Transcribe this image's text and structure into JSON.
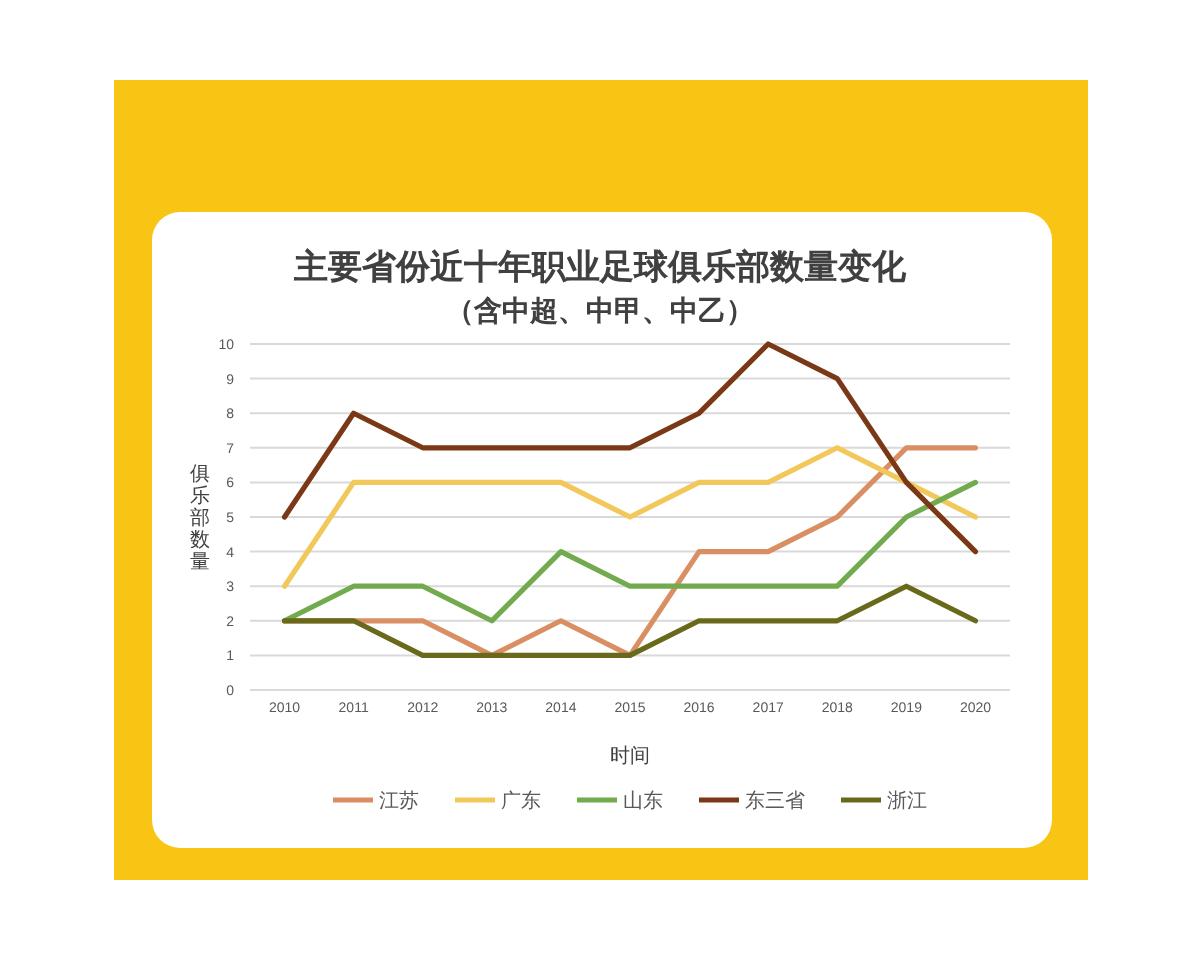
{
  "chart_data": {
    "type": "line",
    "title": "主要省份近十年职业足球俱乐部数量变化",
    "subtitle": "（含中超、中甲、中乙）",
    "xlabel": "时间",
    "ylabel": "俱乐部数量",
    "categories": [
      "2010",
      "2011",
      "2012",
      "2013",
      "2014",
      "2015",
      "2016",
      "2017",
      "2018",
      "2019",
      "2020"
    ],
    "ylim": [
      0,
      10
    ],
    "yticks": [
      0,
      1,
      2,
      3,
      4,
      5,
      6,
      7,
      8,
      9,
      10
    ],
    "grid": "y",
    "legend": "bottom",
    "line_style": "solid",
    "series": [
      {
        "name": "江苏",
        "color": "#d98f63",
        "values": [
          2,
          2,
          2,
          1,
          2,
          1,
          4,
          4,
          5,
          7,
          7
        ]
      },
      {
        "name": "广东",
        "color": "#f2c85a",
        "values": [
          3,
          6,
          6,
          6,
          6,
          5,
          6,
          6,
          7,
          6,
          5
        ]
      },
      {
        "name": "山东",
        "color": "#72aa4e",
        "values": [
          2,
          3,
          3,
          2,
          4,
          3,
          3,
          3,
          3,
          5,
          6
        ]
      },
      {
        "name": "东三省",
        "color": "#7a3817",
        "values": [
          5,
          8,
          7,
          7,
          7,
          7,
          8,
          10,
          9,
          6,
          4
        ]
      },
      {
        "name": "浙江",
        "color": "#69691c",
        "values": [
          2,
          2,
          1,
          1,
          1,
          1,
          2,
          2,
          2,
          3,
          2
        ]
      }
    ]
  }
}
